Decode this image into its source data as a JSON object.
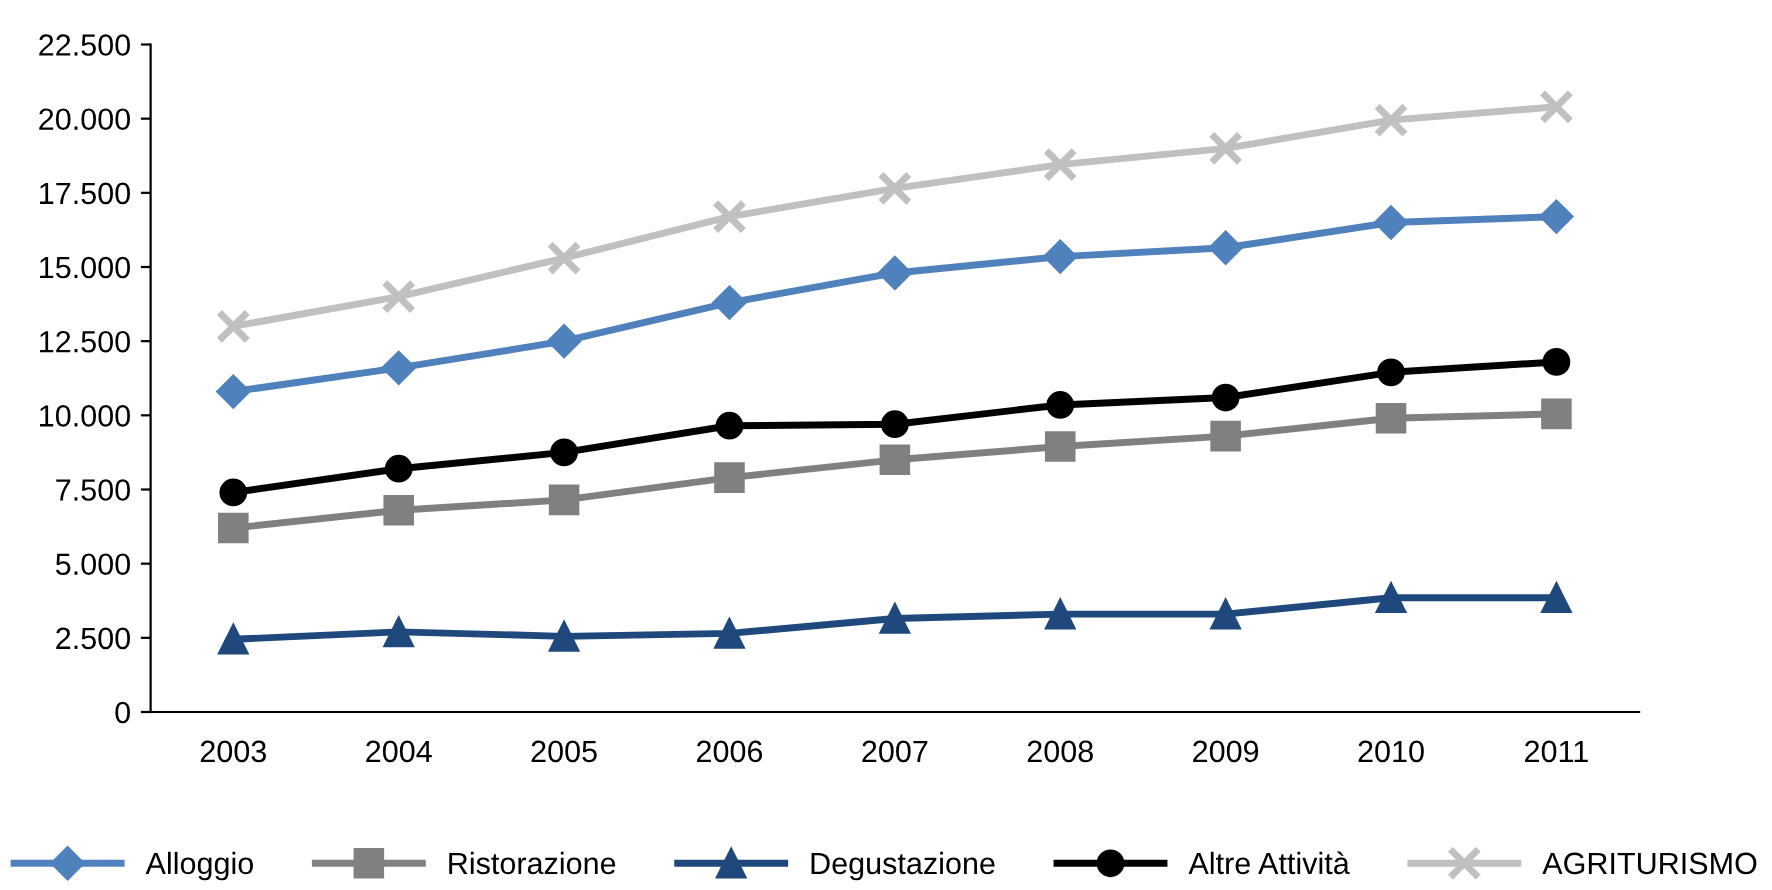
{
  "chart_data": {
    "type": "line",
    "categories": [
      "2003",
      "2004",
      "2005",
      "2006",
      "2007",
      "2008",
      "2009",
      "2010",
      "2011"
    ],
    "series": [
      {
        "name": "Alloggio",
        "color": "#4f81bd",
        "marker": "diamond",
        "values": [
          10800,
          11600,
          12500,
          13800,
          14800,
          15350,
          15650,
          16500,
          16700
        ]
      },
      {
        "name": "Ristorazione",
        "color": "#808080",
        "marker": "square",
        "values": [
          6200,
          6800,
          7150,
          7900,
          8500,
          8950,
          9300,
          9900,
          10050
        ]
      },
      {
        "name": "Degustazione",
        "color": "#1f497d",
        "marker": "triangle",
        "values": [
          2450,
          2700,
          2550,
          2650,
          3150,
          3300,
          3300,
          3850,
          3850
        ]
      },
      {
        "name": "Altre Attività",
        "color": "#000000",
        "marker": "circle",
        "values": [
          7400,
          8200,
          8750,
          9650,
          9700,
          10350,
          10600,
          11450,
          11800
        ]
      },
      {
        "name": "AGRITURISMO",
        "color": "#c0c0c0",
        "marker": "cross",
        "values": [
          13000,
          14000,
          15300,
          16700,
          17650,
          18450,
          19000,
          19950,
          20400
        ]
      }
    ],
    "ylim": [
      0,
      22500
    ],
    "yticks": [
      0,
      {
        "value": 2500,
        "label": "2.500"
      },
      {
        "value": 5000,
        "label": "5.000"
      },
      {
        "value": 7500,
        "label": "7.500"
      },
      {
        "value": 10000,
        "label": "10.000"
      },
      {
        "value": 12500,
        "label": "12.500"
      },
      {
        "value": 15000,
        "label": "15.000"
      },
      {
        "value": 17500,
        "label": "17.500"
      },
      {
        "value": 20000,
        "label": "20.000"
      },
      {
        "value": 22500,
        "label": "22.500"
      }
    ],
    "grid": false,
    "legend": "bottom",
    "line_style": "solid"
  }
}
